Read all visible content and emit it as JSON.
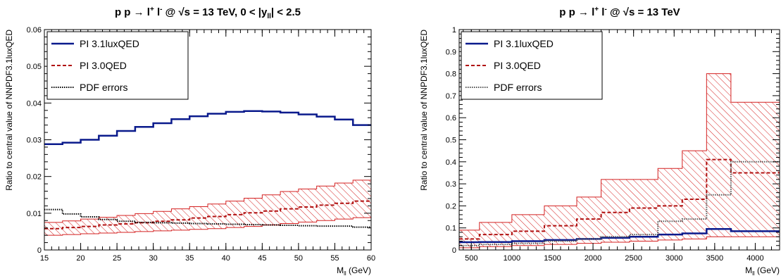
{
  "chart_data": [
    {
      "type": "line",
      "title_parts": {
        "pre": "p p → l",
        "sup1": "+",
        "mid": " l",
        "sup2": "-",
        "post": " @ √s = 13 TeV, 0 < |y",
        "sub": "ll",
        "tail": "| < 2.5"
      },
      "xlabel": {
        "main": "M",
        "sub": "ll",
        "unit": " (GeV)"
      },
      "ylabel": "Ratio to central value of NNPDF3.1luxQED",
      "xlim": [
        15,
        60
      ],
      "ylim": [
        0,
        0.06
      ],
      "xticks": [
        15,
        20,
        25,
        30,
        35,
        40,
        45,
        50,
        55,
        60
      ],
      "yticks": [
        0,
        0.01,
        0.02,
        0.03,
        0.04,
        0.05,
        0.06
      ],
      "ytick_labels": [
        "0",
        "0.01",
        "0.02",
        "0.03",
        "0.04",
        "0.05",
        "0.06"
      ],
      "legend_position": "top-left",
      "bin_edges": [
        15,
        17.5,
        20,
        22.5,
        25,
        27.5,
        30,
        32.5,
        35,
        37.5,
        40,
        42.5,
        45,
        47.5,
        50,
        52.5,
        55,
        57.5,
        60
      ],
      "series": [
        {
          "name": "PI 3.1luxQED",
          "style": "solid",
          "color": "#0a1a8c",
          "values": [
            0.0288,
            0.0292,
            0.03,
            0.0311,
            0.0324,
            0.0335,
            0.0345,
            0.0356,
            0.0364,
            0.0371,
            0.0376,
            0.0378,
            0.0377,
            0.0374,
            0.0369,
            0.0363,
            0.0355,
            0.034
          ]
        },
        {
          "name": "PI 3.0QED",
          "style": "dashed",
          "color": "#b01010",
          "values": [
            0.0058,
            0.0061,
            0.0064,
            0.0068,
            0.0071,
            0.0074,
            0.0078,
            0.0082,
            0.0087,
            0.0091,
            0.0096,
            0.0101,
            0.0106,
            0.0112,
            0.0117,
            0.0122,
            0.0127,
            0.0133
          ]
        },
        {
          "name": "PDF errors",
          "style": "dotted",
          "color": "#000000",
          "values": [
            0.011,
            0.0098,
            0.009,
            0.0083,
            0.0078,
            0.0075,
            0.0074,
            0.0073,
            0.0072,
            0.0071,
            0.007,
            0.0069,
            0.0068,
            0.0067,
            0.0066,
            0.0065,
            0.0065,
            0.0062
          ]
        }
      ],
      "band": {
        "of": "PI 3.0QED",
        "color": "#d42020",
        "lower": [
          0.004,
          0.0042,
          0.0044,
          0.0046,
          0.0048,
          0.005,
          0.0052,
          0.0054,
          0.0056,
          0.0058,
          0.0061,
          0.0064,
          0.0068,
          0.0072,
          0.0076,
          0.008,
          0.0084,
          0.0088
        ],
        "upper": [
          0.0075,
          0.0079,
          0.0084,
          0.0089,
          0.0094,
          0.0099,
          0.0105,
          0.0112,
          0.0118,
          0.0125,
          0.0133,
          0.0141,
          0.015,
          0.0159,
          0.0166,
          0.0174,
          0.0182,
          0.019
        ]
      }
    },
    {
      "type": "line",
      "title_parts": {
        "pre": "p p → l",
        "sup1": "+",
        "mid": " l",
        "sup2": "-",
        "post": " @ √s = 13 TeV",
        "sub": "",
        "tail": ""
      },
      "xlabel": {
        "main": "M",
        "sub": "ll",
        "unit": " (GeV)"
      },
      "ylabel": "Ratio to central value of NNPDF3.1luxQED",
      "xlim": [
        350,
        4300
      ],
      "ylim": [
        0,
        1
      ],
      "xticks": [
        500,
        1000,
        1500,
        2000,
        2500,
        3000,
        3500,
        4000
      ],
      "yticks": [
        0,
        0.1,
        0.2,
        0.3,
        0.4,
        0.5,
        0.6,
        0.7,
        0.8,
        0.9,
        1
      ],
      "ytick_labels": [
        "0",
        "0.1",
        "0.2",
        "0.3",
        "0.4",
        "0.5",
        "0.6",
        "0.7",
        "0.8",
        "0.9",
        "1"
      ],
      "legend_position": "top-left",
      "bin_edges": [
        350,
        600,
        1000,
        1400,
        1800,
        2100,
        2450,
        2800,
        3100,
        3400,
        3700,
        4300
      ],
      "series": [
        {
          "name": "PI 3.1luxQED",
          "style": "solid",
          "color": "#0a1a8c",
          "values": [
            0.035,
            0.036,
            0.04,
            0.045,
            0.05,
            0.055,
            0.06,
            0.07,
            0.075,
            0.095,
            0.085
          ]
        },
        {
          "name": "PI 3.0QED",
          "style": "dashed",
          "color": "#b01010",
          "values": [
            0.05,
            0.07,
            0.085,
            0.11,
            0.14,
            0.17,
            0.19,
            0.2,
            0.23,
            0.41,
            0.35
          ]
        },
        {
          "name": "PDF errors",
          "style": "dotted",
          "color": "#555555",
          "values": [
            0.02,
            0.025,
            0.03,
            0.04,
            0.05,
            0.06,
            0.07,
            0.13,
            0.14,
            0.25,
            0.4
          ]
        }
      ],
      "band": {
        "of": "PI 3.0QED",
        "color": "#d42020",
        "lower": [
          0.01,
          0.015,
          0.02,
          0.025,
          0.03,
          0.035,
          0.04,
          0.045,
          0.05,
          0.06,
          0.06
        ],
        "upper": [
          0.09,
          0.125,
          0.16,
          0.2,
          0.24,
          0.32,
          0.32,
          0.37,
          0.45,
          0.8,
          0.67
        ]
      }
    }
  ]
}
